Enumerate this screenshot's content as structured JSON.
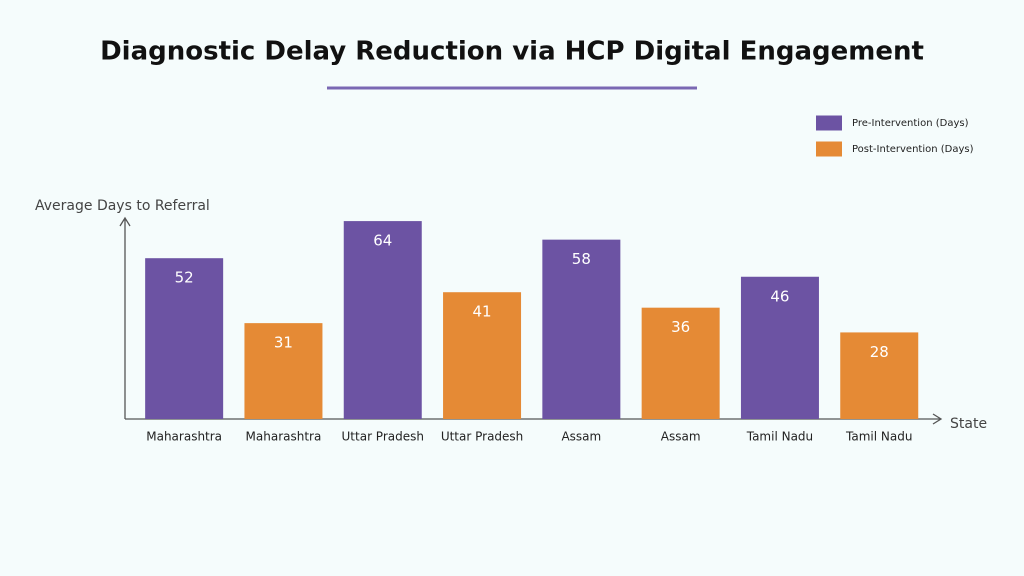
{
  "chart_data": {
    "type": "bar",
    "title": "Diagnostic Delay Reduction via HCP Digital Engagement",
    "y_label": "Average Days to Referral",
    "x_label": "State",
    "categories": [
      "Maharashtra",
      "Maharashtra",
      "Uttar Pradesh",
      "Uttar Pradesh",
      "Assam",
      "Assam",
      "Tamil Nadu",
      "Tamil Nadu"
    ],
    "series": [
      {
        "name": "Pre-Intervention (Days)",
        "color": "#6c53a3",
        "values": [
          52,
          null,
          64,
          null,
          58,
          null,
          46,
          null
        ]
      },
      {
        "name": "Post-Intervention (Days)",
        "color": "#e58a35",
        "values": [
          null,
          31,
          null,
          41,
          null,
          36,
          null,
          28
        ]
      }
    ],
    "ylim": [
      0,
      65
    ],
    "legend": "top-right"
  }
}
